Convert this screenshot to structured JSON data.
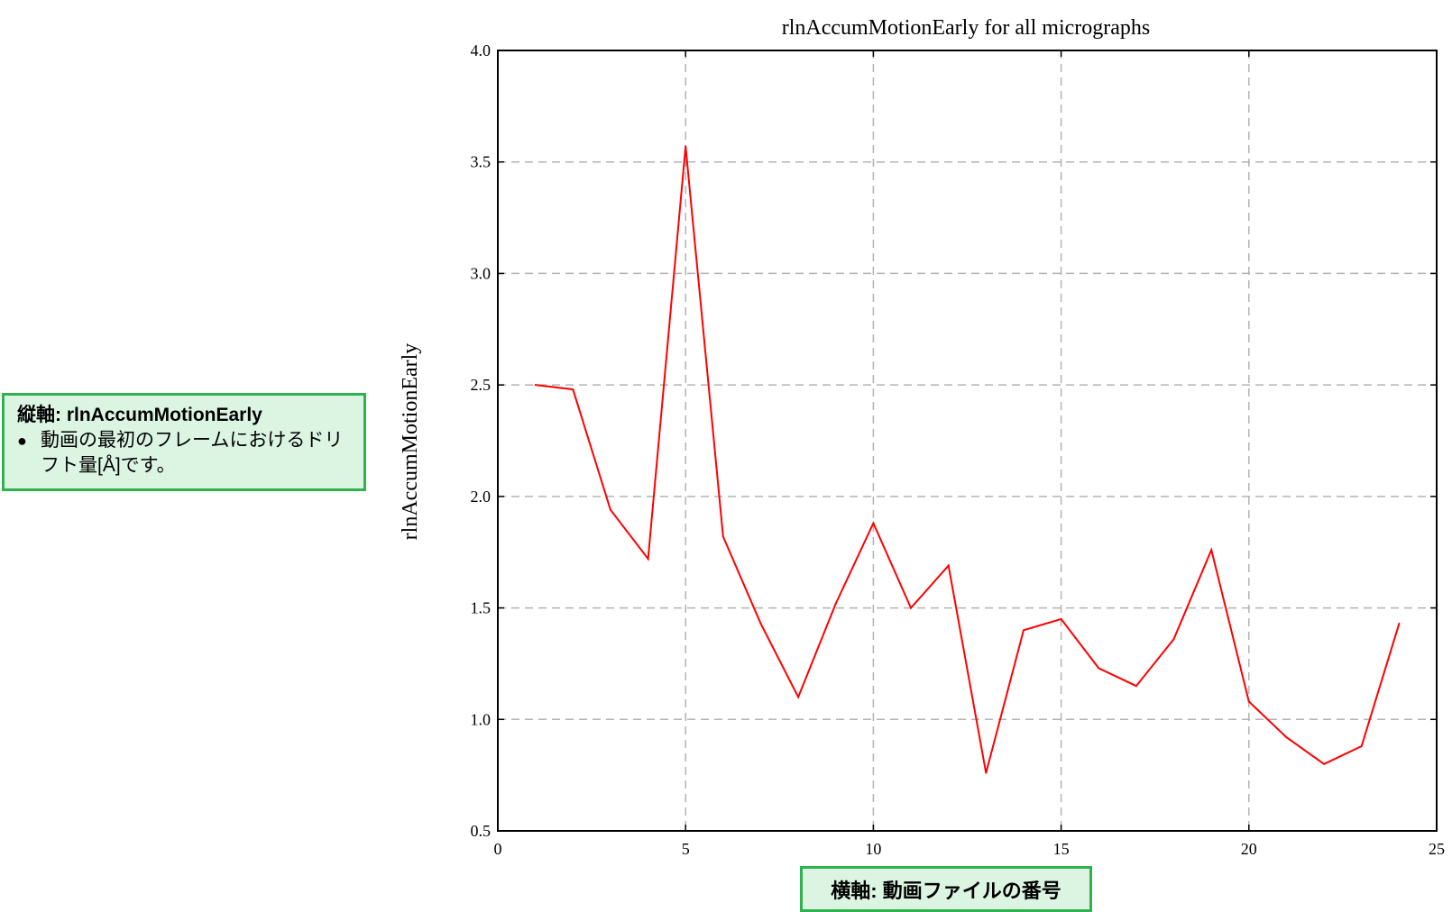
{
  "chart_data": {
    "type": "line",
    "title": "rlnAccumMotionEarly for all micrographs",
    "xlabel": "",
    "ylabel": "rlnAccumMotionEarly",
    "xlim": [
      0,
      25
    ],
    "ylim": [
      0.5,
      4.0
    ],
    "x_ticks": [
      0,
      5,
      10,
      15,
      20,
      25
    ],
    "y_ticks": [
      0.5,
      1.0,
      1.5,
      2.0,
      2.5,
      3.0,
      3.5,
      4.0
    ],
    "grid": true,
    "series": [
      {
        "color": "#ff0000",
        "x": [
          1,
          2,
          3,
          4,
          5,
          6,
          7,
          8,
          9,
          10,
          11,
          12,
          13,
          14,
          15,
          16,
          17,
          18,
          19,
          20,
          21,
          22,
          23,
          24
        ],
        "y": [
          2.5,
          2.48,
          1.94,
          1.72,
          3.57,
          1.82,
          1.43,
          1.1,
          1.52,
          1.88,
          1.5,
          1.69,
          0.76,
          1.4,
          1.45,
          1.23,
          1.15,
          1.36,
          1.76,
          1.08,
          0.92,
          0.8,
          0.88,
          1.43
        ]
      }
    ]
  },
  "annotations": {
    "y_note": {
      "title": "縦軸: rlnAccumMotionEarly",
      "bullet": "●",
      "text": "動画の最初のフレームにおけるドリフト量[Å]です。"
    },
    "x_note": {
      "text": "横軸: 動画ファイルの番号"
    }
  }
}
